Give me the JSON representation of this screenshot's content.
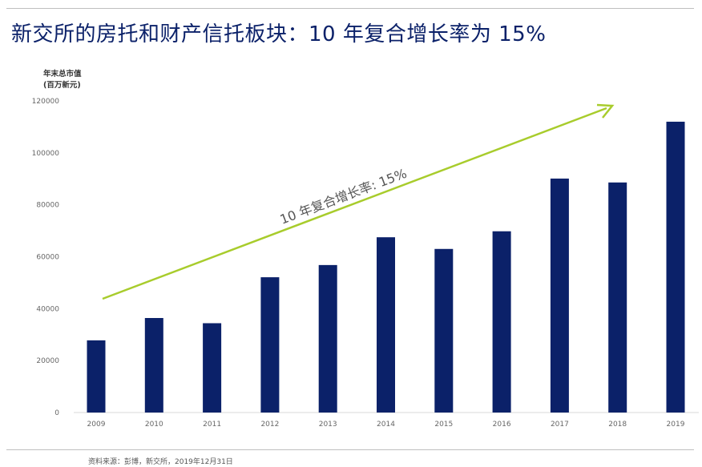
{
  "title": "新交所的房托和财产信托板块：10 年复合增长率为 15%",
  "source": "资料来源：彭博，新交所，2019年12月31日",
  "colors": {
    "bar": "#0b2169",
    "arrow": "#a8cc2c",
    "title": "#0b2169"
  },
  "chart_data": {
    "type": "bar",
    "title": "新交所的房托和财产信托板块：10 年复合增长率为 15%",
    "ylabel": "年末总市值\n(百万新元)",
    "xlabel": "",
    "categories": [
      "2009",
      "2010",
      "2011",
      "2012",
      "2013",
      "2014",
      "2015",
      "2016",
      "2017",
      "2018",
      "2019"
    ],
    "values": [
      27800,
      36400,
      34400,
      52100,
      56800,
      67500,
      63000,
      69800,
      90100,
      88600,
      112000
    ],
    "ylim": [
      0,
      120000
    ],
    "yticks": [
      0,
      20000,
      40000,
      60000,
      80000,
      100000,
      120000
    ],
    "grid": false,
    "annotations": [
      {
        "type": "arrow",
        "label": "10 年复合增长率: 15%"
      }
    ]
  }
}
